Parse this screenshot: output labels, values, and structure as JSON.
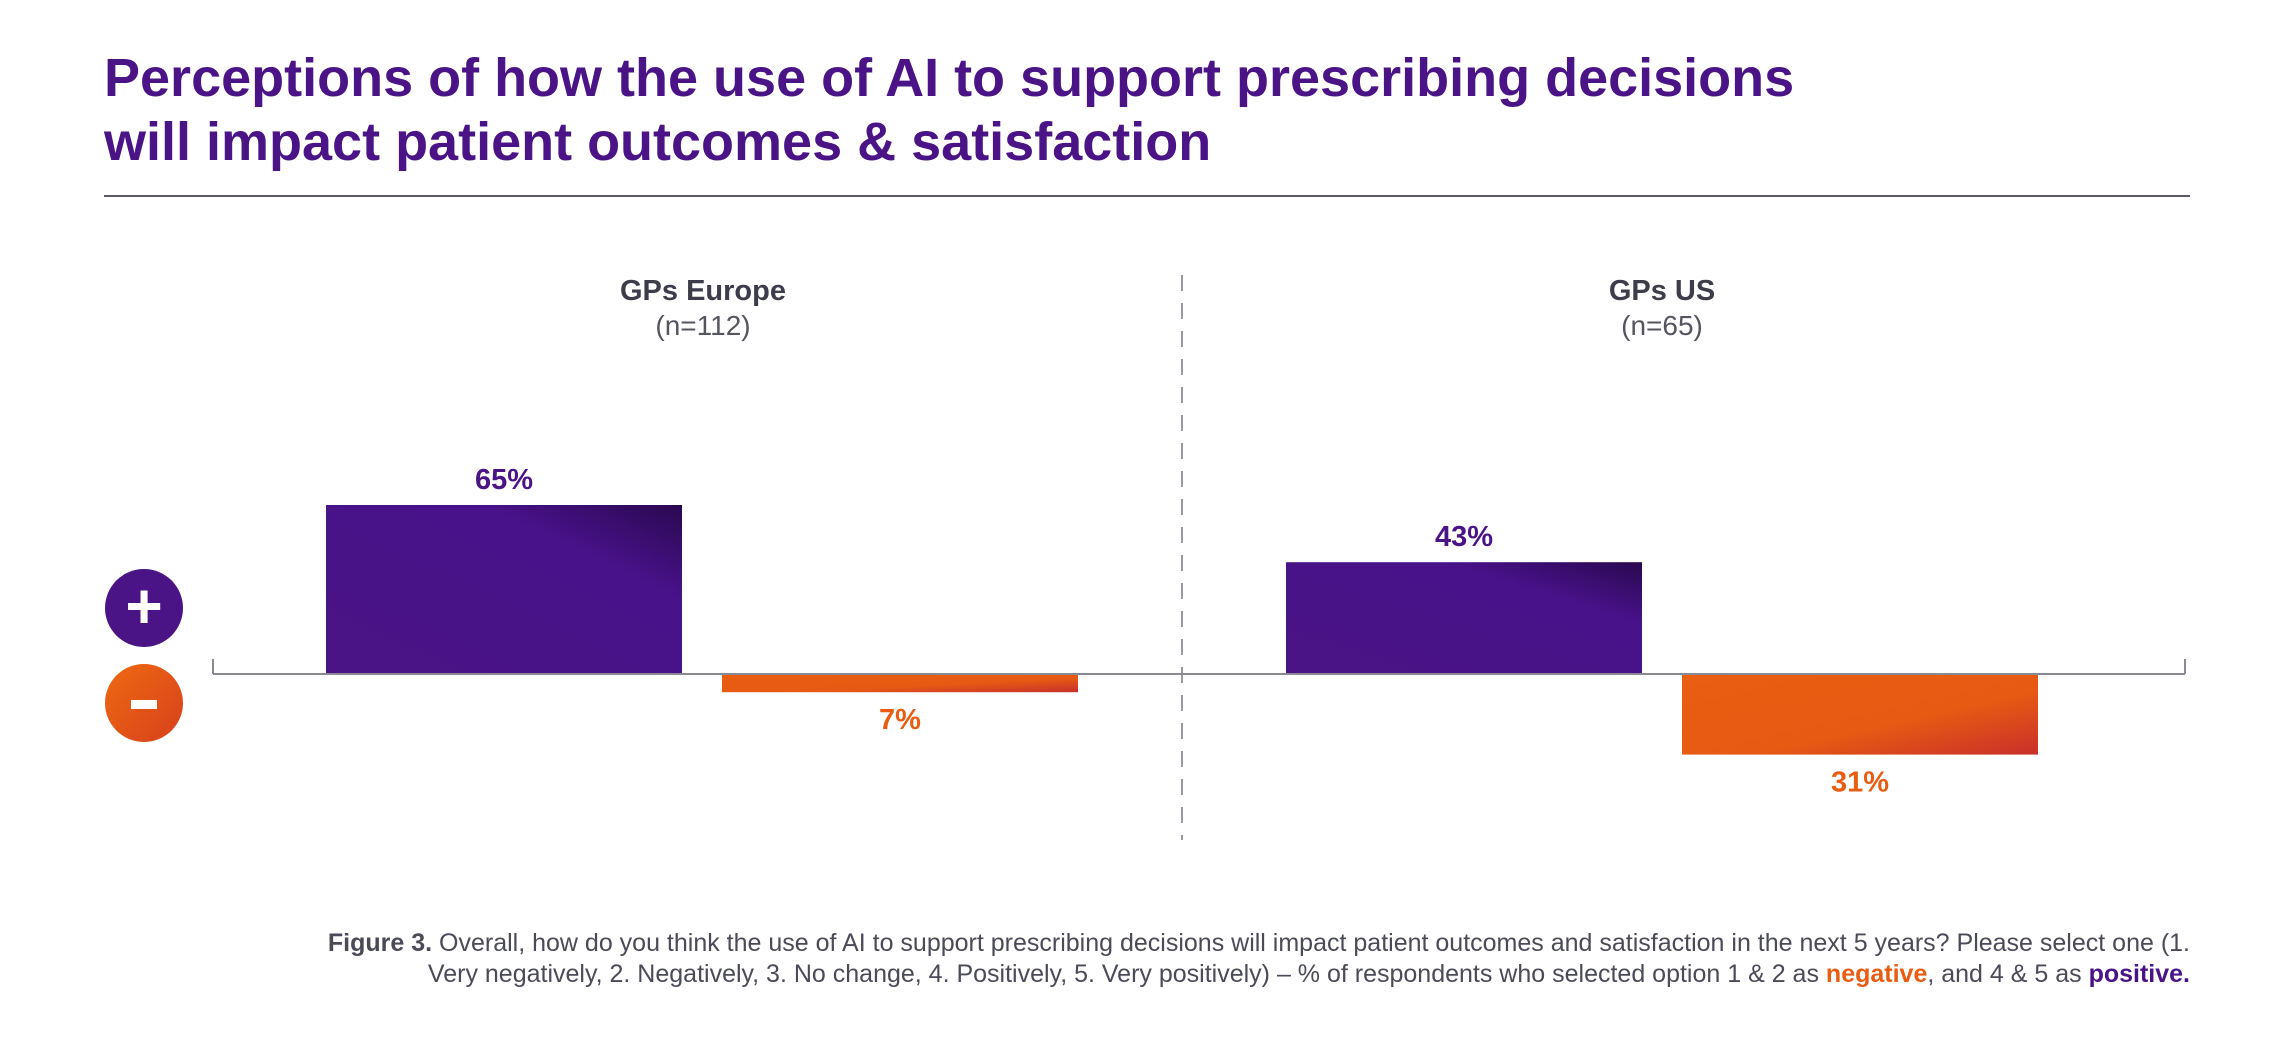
{
  "title": {
    "line1": "Perceptions of how the use of AI to support prescribing decisions",
    "line2": "will impact patient outcomes & satisfaction"
  },
  "legend": {
    "positive_symbol": "+",
    "negative_symbol": "-"
  },
  "colors": {
    "positive": "#4a1486",
    "negative": "#e85d12",
    "title": "#4a1486",
    "text": "#3c3c4a"
  },
  "chart_data": {
    "type": "bar",
    "unit": "%",
    "groups": [
      {
        "title": "GPs Europe",
        "subtitle": "(n=112)",
        "positive": 65,
        "negative": 7
      },
      {
        "title": "GPs US",
        "subtitle": "(n=65)",
        "positive": 43,
        "negative": 31
      }
    ],
    "series": [
      {
        "name": "positive",
        "values": [
          65,
          43
        ]
      },
      {
        "name": "negative",
        "values": [
          7,
          31
        ]
      }
    ],
    "value_labels": {
      "positive": [
        "65%",
        "43%"
      ],
      "negative": [
        "7%",
        "31%"
      ]
    }
  },
  "caption": {
    "figure_label": "Figure 3.",
    "text_1": " Overall, how do you think the use of AI to support prescribing decisions will impact patient outcomes and satisfaction in the next 5 years? Please select one (1.",
    "text_2": "Very negatively, 2. Negatively, 3. No change, 4. Positively, 5. Very positively) – % of respondents who selected option 1 & 2 as ",
    "negative_word": "negative",
    "text_3": ", and 4 & 5 as ",
    "positive_word": "positive."
  }
}
